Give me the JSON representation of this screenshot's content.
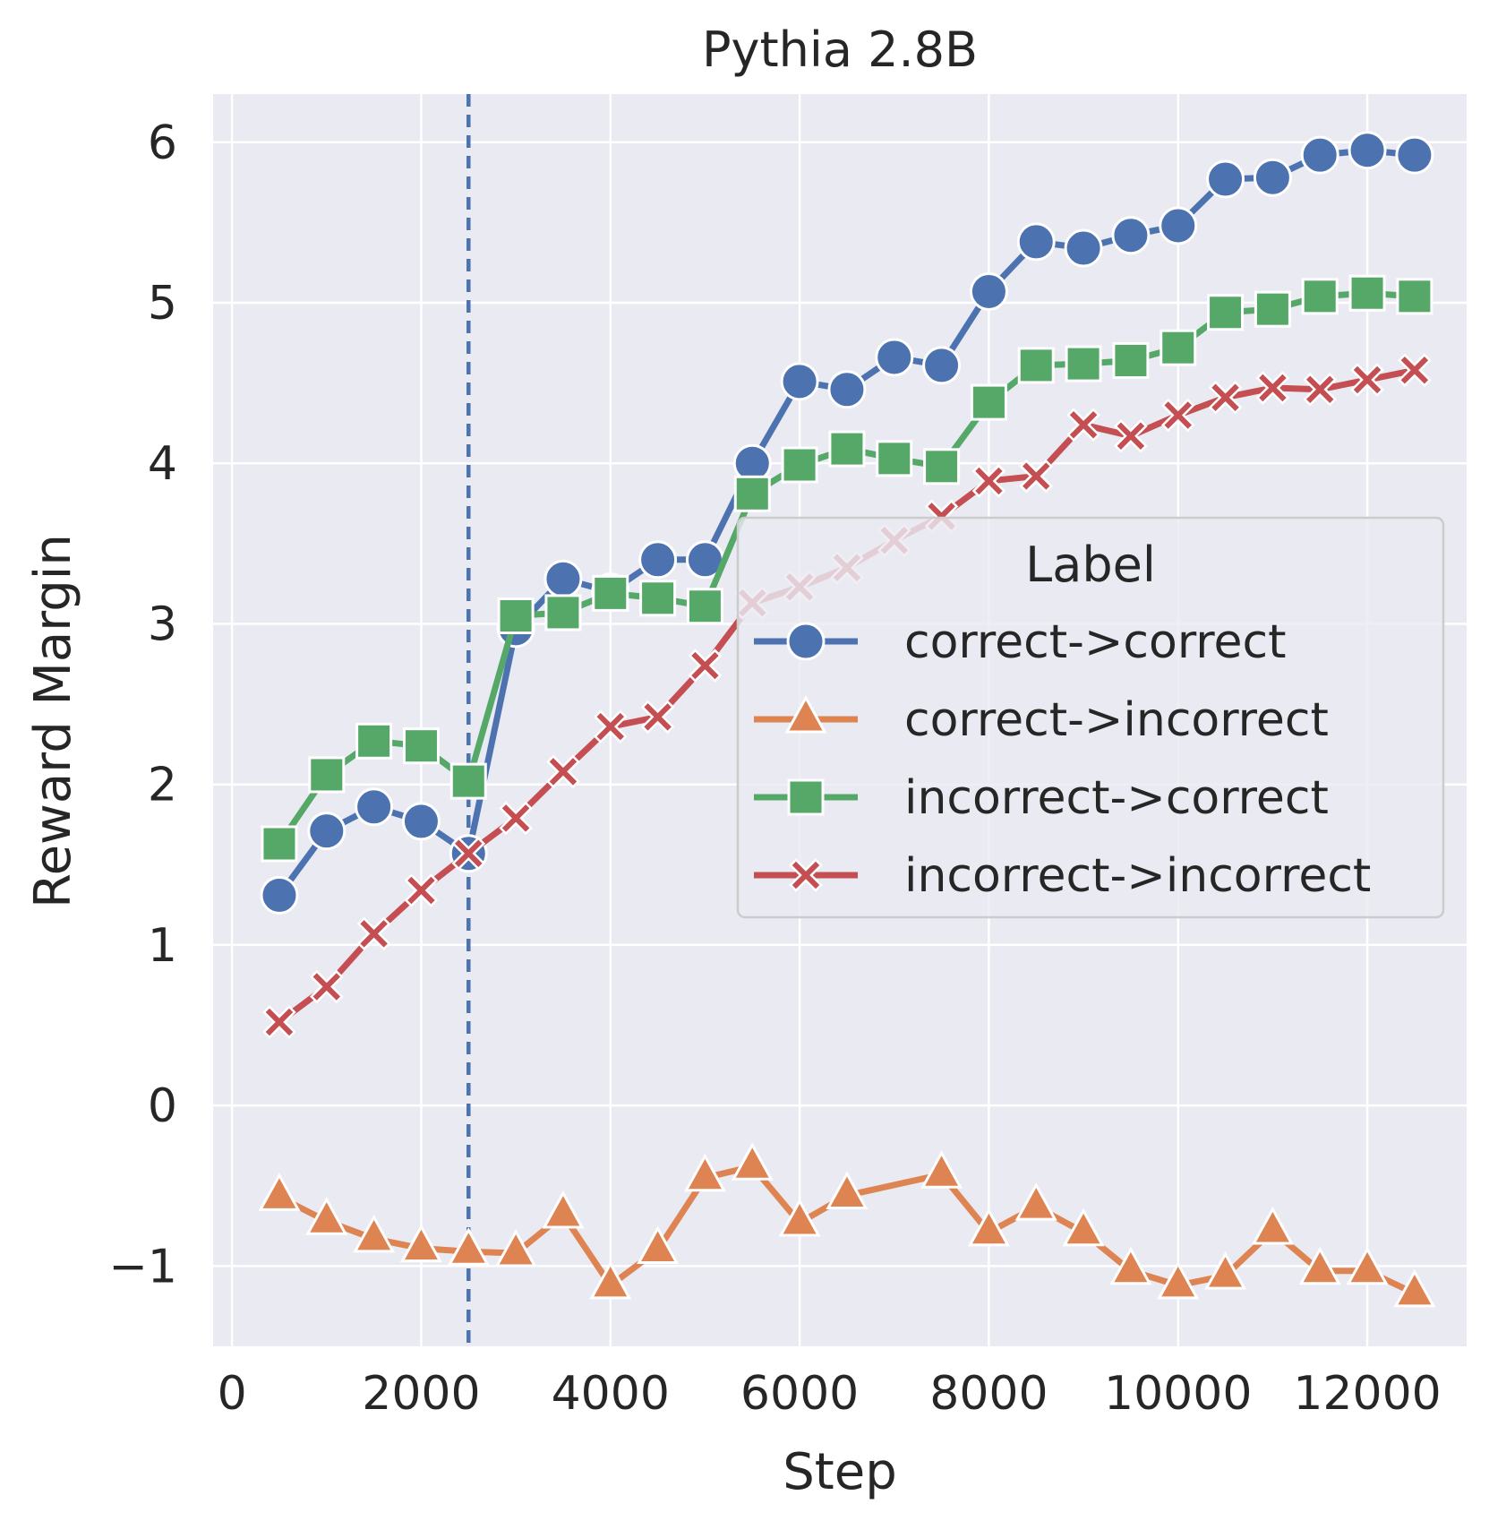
{
  "chart_data": {
    "type": "line",
    "title": "Pythia 2.8B",
    "xlabel": "Step",
    "ylabel": "Reward Margin",
    "xlim": [
      -200,
      13050
    ],
    "ylim": [
      -1.5,
      6.3
    ],
    "xticks": [
      0,
      2000,
      4000,
      6000,
      8000,
      10000,
      12000
    ],
    "xtick_labels": [
      "0",
      "2000",
      "4000",
      "6000",
      "8000",
      "10000",
      "12000"
    ],
    "yticks": [
      -1,
      0,
      1,
      2,
      3,
      4,
      5,
      6
    ],
    "ytick_labels": [
      "−1",
      "0",
      "1",
      "2",
      "3",
      "4",
      "5",
      "6"
    ],
    "grid": true,
    "vline": {
      "x": 2500,
      "color": "#4c72b0",
      "style": "dashed"
    },
    "legend": {
      "title": "Label",
      "position": "center-right"
    },
    "x": [
      500,
      1000,
      1500,
      2000,
      2500,
      3000,
      3500,
      4000,
      4500,
      5000,
      5500,
      6000,
      6500,
      7000,
      7500,
      8000,
      8500,
      9000,
      9500,
      10000,
      10500,
      11000,
      11500,
      12000,
      12500
    ],
    "series": [
      {
        "name": "correct->correct",
        "color": "#4c72b0",
        "marker": "circle",
        "x": [
          500,
          1000,
          1500,
          2000,
          2500,
          3000,
          3500,
          4000,
          4500,
          5000,
          5500,
          6000,
          6500,
          7000,
          7500,
          8000,
          8500,
          9000,
          9500,
          10000,
          10500,
          11000,
          11500,
          12000,
          12500
        ],
        "values": [
          1.31,
          1.71,
          1.86,
          1.77,
          1.57,
          2.97,
          3.28,
          3.2,
          3.4,
          3.4,
          4.0,
          4.51,
          4.46,
          4.66,
          4.61,
          5.07,
          5.38,
          5.34,
          5.42,
          5.48,
          5.77,
          5.78,
          5.92,
          5.95,
          5.92
        ]
      },
      {
        "name": "correct->incorrect",
        "color": "#dd8452",
        "marker": "triangle",
        "x": [
          500,
          1000,
          1500,
          2000,
          2500,
          3000,
          3500,
          4000,
          4500,
          5000,
          5500,
          6000,
          6500,
          7500,
          8000,
          8500,
          9000,
          9500,
          10000,
          10500,
          11000,
          11500,
          12000,
          12500
        ],
        "values": [
          -0.57,
          -0.72,
          -0.83,
          -0.89,
          -0.91,
          -0.92,
          -0.68,
          -1.12,
          -0.9,
          -0.45,
          -0.38,
          -0.73,
          -0.56,
          -0.43,
          -0.79,
          -0.63,
          -0.79,
          -1.03,
          -1.12,
          -1.06,
          -0.78,
          -1.03,
          -1.03,
          -1.17
        ]
      },
      {
        "name": "incorrect->correct",
        "color": "#55a868",
        "marker": "square",
        "x": [
          500,
          1000,
          1500,
          2000,
          2500,
          3000,
          3500,
          4000,
          4500,
          5000,
          5500,
          6000,
          6500,
          7000,
          7500,
          8000,
          8500,
          9000,
          9500,
          10000,
          10500,
          11000,
          11500,
          12000,
          12500
        ],
        "values": [
          1.63,
          2.06,
          2.27,
          2.24,
          2.02,
          3.05,
          3.07,
          3.19,
          3.16,
          3.11,
          3.81,
          3.99,
          4.09,
          4.03,
          3.98,
          4.38,
          4.61,
          4.62,
          4.64,
          4.72,
          4.94,
          4.96,
          5.04,
          5.06,
          5.04
        ]
      },
      {
        "name": "incorrect->incorrect",
        "color": "#c44e52",
        "marker": "x",
        "x": [
          500,
          1000,
          1500,
          2000,
          2500,
          3000,
          3500,
          4000,
          4500,
          5000,
          5500,
          6000,
          6500,
          7000,
          7500,
          8000,
          8500,
          9000,
          9500,
          10000,
          10500,
          11000,
          11500,
          12000,
          12500
        ],
        "values": [
          0.52,
          0.74,
          1.07,
          1.34,
          1.57,
          1.79,
          2.08,
          2.36,
          2.42,
          2.74,
          3.13,
          3.23,
          3.35,
          3.52,
          3.67,
          3.89,
          3.92,
          4.24,
          4.17,
          4.3,
          4.41,
          4.47,
          4.46,
          4.52,
          4.58
        ]
      }
    ]
  }
}
